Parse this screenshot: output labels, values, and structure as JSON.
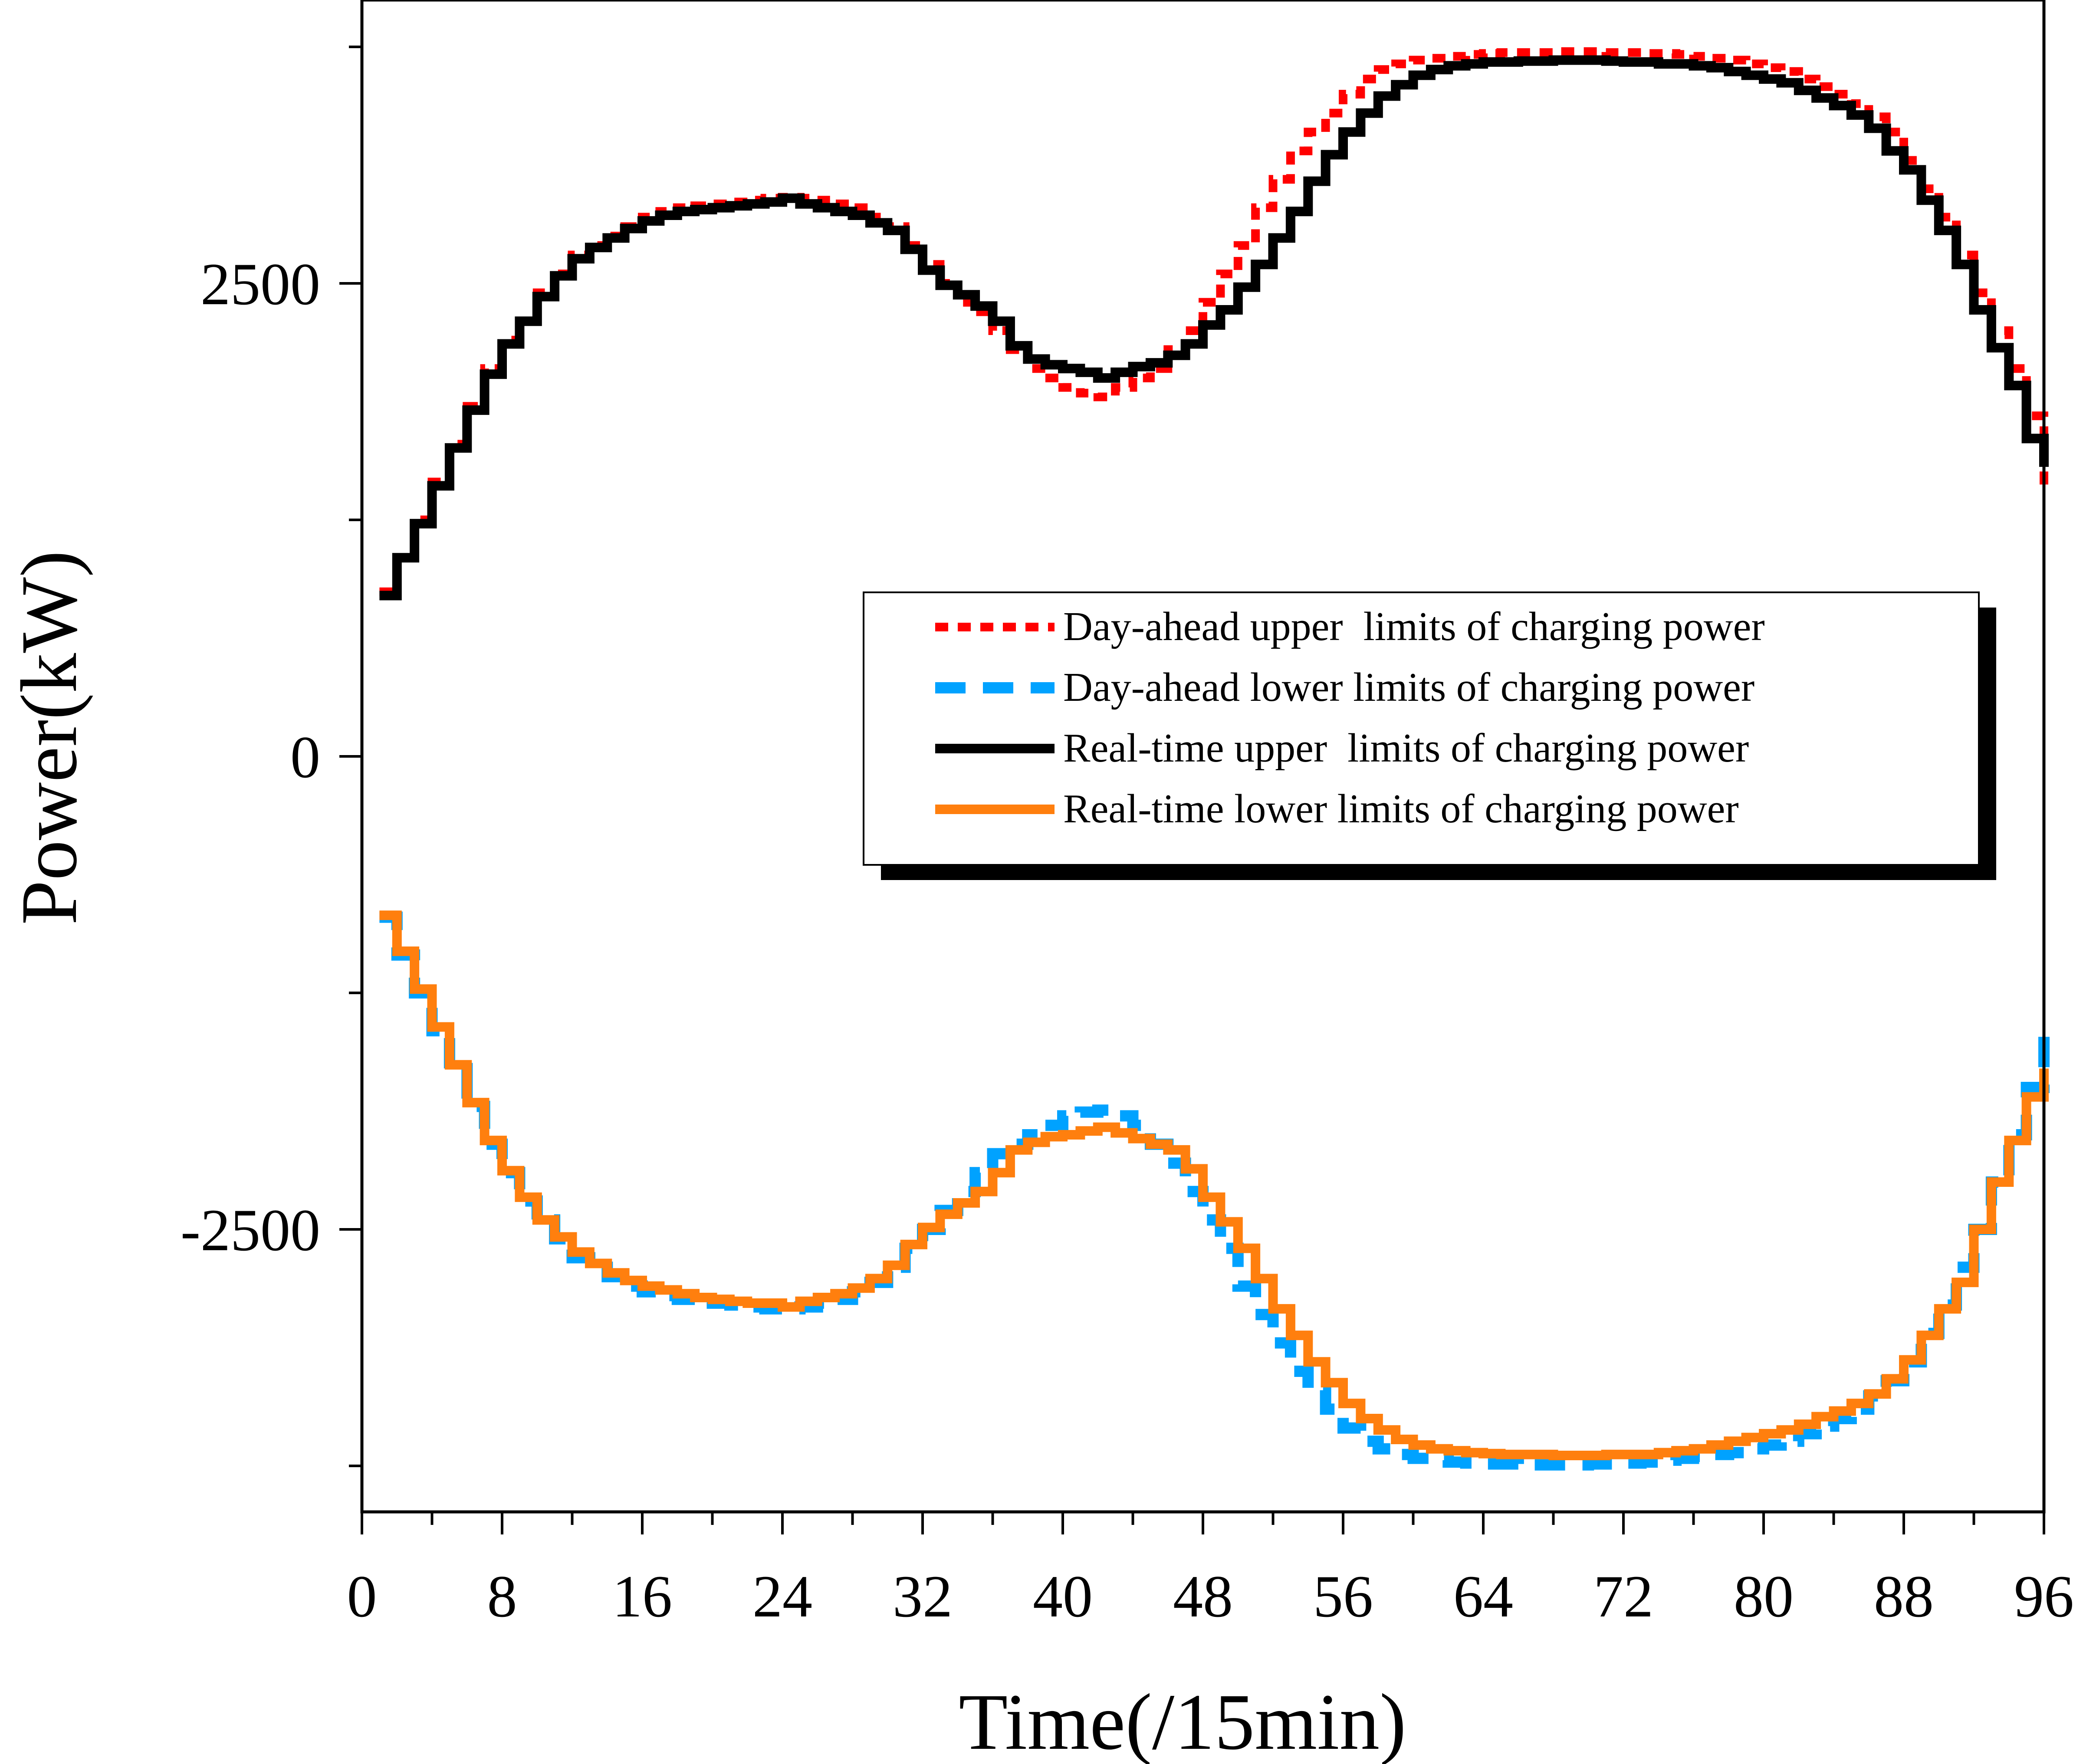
{
  "chart_data": {
    "type": "line",
    "xlabel": "Time(/15min)",
    "ylabel": "Power(kW)",
    "xlim": [
      0,
      96
    ],
    "ylim": [
      -4000,
      4000
    ],
    "xticks": [
      0,
      8,
      16,
      24,
      32,
      40,
      48,
      56,
      64,
      72,
      80,
      88,
      96
    ],
    "yticks": [
      2500,
      0,
      -2500
    ],
    "grid": false,
    "legend_position": "center-right",
    "series": [
      {
        "name": "Day-ahead upper  limits of charging power",
        "color": "#ff0000",
        "style": "dotted",
        "x": [
          1,
          2,
          3,
          4,
          5,
          6,
          7,
          8,
          9,
          10,
          11,
          12,
          13,
          14,
          15,
          16,
          17,
          18,
          19,
          20,
          21,
          22,
          23,
          24,
          25,
          26,
          27,
          28,
          29,
          30,
          31,
          32,
          33,
          34,
          35,
          36,
          37,
          38,
          39,
          40,
          41,
          42,
          43,
          44,
          45,
          46,
          47,
          48,
          49,
          50,
          51,
          52,
          53,
          54,
          55,
          56,
          57,
          58,
          59,
          60,
          61,
          62,
          63,
          64,
          65,
          66,
          67,
          68,
          69,
          70,
          71,
          72,
          73,
          74,
          75,
          76,
          77,
          78,
          79,
          80,
          81,
          82,
          83,
          84,
          85,
          86,
          87,
          88,
          89,
          90,
          91,
          92,
          93,
          94,
          95,
          96
        ],
        "values": [
          870,
          1050,
          1250,
          1450,
          1650,
          1850,
          2050,
          2200,
          2300,
          2450,
          2550,
          2650,
          2700,
          2750,
          2800,
          2850,
          2880,
          2900,
          2910,
          2920,
          2930,
          2940,
          2950,
          2955,
          2950,
          2940,
          2920,
          2900,
          2850,
          2800,
          2700,
          2600,
          2500,
          2400,
          2350,
          2250,
          2150,
          2050,
          2000,
          1950,
          1920,
          1900,
          1950,
          2000,
          2050,
          2150,
          2250,
          2400,
          2550,
          2700,
          2900,
          3050,
          3200,
          3300,
          3400,
          3500,
          3580,
          3630,
          3660,
          3680,
          3690,
          3700,
          3710,
          3715,
          3720,
          3720,
          3720,
          3725,
          3725,
          3725,
          3720,
          3720,
          3715,
          3715,
          3710,
          3700,
          3690,
          3680,
          3660,
          3640,
          3620,
          3580,
          3540,
          3500,
          3450,
          3380,
          3300,
          3150,
          3000,
          2850,
          2650,
          2450,
          2250,
          2050,
          1800,
          1400
        ]
      },
      {
        "name": "Day-ahead lower limits of charging power",
        "color": "#00a2ff",
        "style": "dashed",
        "x": [
          1,
          2,
          3,
          4,
          5,
          6,
          7,
          8,
          9,
          10,
          11,
          12,
          13,
          14,
          15,
          16,
          17,
          18,
          19,
          20,
          21,
          22,
          23,
          24,
          25,
          26,
          27,
          28,
          29,
          30,
          31,
          32,
          33,
          34,
          35,
          36,
          37,
          38,
          39,
          40,
          41,
          42,
          43,
          44,
          45,
          46,
          47,
          48,
          49,
          50,
          51,
          52,
          53,
          54,
          55,
          56,
          57,
          58,
          59,
          60,
          61,
          62,
          63,
          64,
          65,
          66,
          67,
          68,
          69,
          70,
          71,
          72,
          73,
          74,
          75,
          76,
          77,
          78,
          79,
          80,
          81,
          82,
          83,
          84,
          85,
          86,
          87,
          88,
          89,
          90,
          91,
          92,
          93,
          94,
          95,
          96
        ],
        "values": [
          -850,
          -1050,
          -1250,
          -1450,
          -1650,
          -1850,
          -2050,
          -2200,
          -2350,
          -2450,
          -2550,
          -2650,
          -2700,
          -2750,
          -2800,
          -2830,
          -2850,
          -2870,
          -2880,
          -2890,
          -2900,
          -2910,
          -2920,
          -2920,
          -2910,
          -2890,
          -2870,
          -2830,
          -2780,
          -2700,
          -2600,
          -2500,
          -2400,
          -2300,
          -2200,
          -2100,
          -2050,
          -2000,
          -1950,
          -1900,
          -1880,
          -1870,
          -1900,
          -1950,
          -2050,
          -2150,
          -2300,
          -2450,
          -2600,
          -2800,
          -2950,
          -3100,
          -3250,
          -3350,
          -3450,
          -3550,
          -3620,
          -3660,
          -3690,
          -3710,
          -3720,
          -3730,
          -3735,
          -3740,
          -3740,
          -3745,
          -3745,
          -3745,
          -3745,
          -3740,
          -3740,
          -3735,
          -3730,
          -3720,
          -3710,
          -3700,
          -3690,
          -3680,
          -3660,
          -3640,
          -3620,
          -3580,
          -3540,
          -3500,
          -3450,
          -3380,
          -3300,
          -3200,
          -3050,
          -2900,
          -2700,
          -2500,
          -2250,
          -2000,
          -1750,
          -1400
        ]
      },
      {
        "name": "Real-time upper  limits of charging power",
        "color": "#000000",
        "style": "solid",
        "x": [
          1,
          2,
          3,
          4,
          5,
          6,
          7,
          8,
          9,
          10,
          11,
          12,
          13,
          14,
          15,
          16,
          17,
          18,
          19,
          20,
          21,
          22,
          23,
          24,
          25,
          26,
          27,
          28,
          29,
          30,
          31,
          32,
          33,
          34,
          35,
          36,
          37,
          38,
          39,
          40,
          41,
          42,
          43,
          44,
          45,
          46,
          47,
          48,
          49,
          50,
          51,
          52,
          53,
          54,
          55,
          56,
          57,
          58,
          59,
          60,
          61,
          62,
          63,
          64,
          65,
          66,
          67,
          68,
          69,
          70,
          71,
          72,
          73,
          74,
          75,
          76,
          77,
          78,
          79,
          80,
          81,
          82,
          83,
          84,
          85,
          86,
          87,
          88,
          89,
          90,
          91,
          92,
          93,
          94,
          95,
          96
        ],
        "values": [
          850,
          1050,
          1230,
          1430,
          1630,
          1830,
          2020,
          2180,
          2300,
          2430,
          2540,
          2630,
          2690,
          2740,
          2790,
          2830,
          2860,
          2880,
          2890,
          2900,
          2910,
          2920,
          2930,
          2950,
          2920,
          2900,
          2880,
          2860,
          2820,
          2780,
          2680,
          2570,
          2490,
          2440,
          2380,
          2300,
          2170,
          2100,
          2070,
          2050,
          2030,
          2000,
          2030,
          2060,
          2080,
          2120,
          2180,
          2280,
          2360,
          2480,
          2600,
          2740,
          2880,
          3040,
          3180,
          3300,
          3400,
          3490,
          3550,
          3600,
          3630,
          3650,
          3660,
          3670,
          3670,
          3675,
          3675,
          3680,
          3680,
          3680,
          3675,
          3670,
          3670,
          3660,
          3660,
          3650,
          3640,
          3620,
          3600,
          3580,
          3560,
          3520,
          3480,
          3440,
          3390,
          3320,
          3200,
          3100,
          2940,
          2780,
          2600,
          2360,
          2160,
          1960,
          1680,
          1530
        ]
      },
      {
        "name": "Real-time lower limits of charging power",
        "color": "#ff7f0e",
        "style": "solid",
        "x": [
          1,
          2,
          3,
          4,
          5,
          6,
          7,
          8,
          9,
          10,
          11,
          12,
          13,
          14,
          15,
          16,
          17,
          18,
          19,
          20,
          21,
          22,
          23,
          24,
          25,
          26,
          27,
          28,
          29,
          30,
          31,
          32,
          33,
          34,
          35,
          36,
          37,
          38,
          39,
          40,
          41,
          42,
          43,
          44,
          45,
          46,
          47,
          48,
          49,
          50,
          51,
          52,
          53,
          54,
          55,
          56,
          57,
          58,
          59,
          60,
          61,
          62,
          63,
          64,
          65,
          66,
          67,
          68,
          69,
          70,
          71,
          72,
          73,
          74,
          75,
          76,
          77,
          78,
          79,
          80,
          81,
          82,
          83,
          84,
          85,
          86,
          87,
          88,
          89,
          90,
          91,
          92,
          93,
          94,
          95,
          96
        ],
        "values": [
          -840,
          -1030,
          -1230,
          -1430,
          -1630,
          -1830,
          -2030,
          -2190,
          -2330,
          -2450,
          -2540,
          -2620,
          -2680,
          -2730,
          -2770,
          -2800,
          -2820,
          -2840,
          -2860,
          -2870,
          -2880,
          -2890,
          -2890,
          -2910,
          -2880,
          -2860,
          -2840,
          -2810,
          -2760,
          -2690,
          -2580,
          -2490,
          -2420,
          -2360,
          -2300,
          -2200,
          -2080,
          -2040,
          -2010,
          -2000,
          -1980,
          -1960,
          -1990,
          -2020,
          -2050,
          -2080,
          -2180,
          -2330,
          -2460,
          -2600,
          -2760,
          -2920,
          -3060,
          -3200,
          -3310,
          -3420,
          -3500,
          -3560,
          -3610,
          -3640,
          -3660,
          -3670,
          -3680,
          -3685,
          -3690,
          -3690,
          -3690,
          -3695,
          -3695,
          -3695,
          -3690,
          -3690,
          -3690,
          -3680,
          -3670,
          -3660,
          -3640,
          -3620,
          -3600,
          -3580,
          -3560,
          -3530,
          -3490,
          -3460,
          -3420,
          -3370,
          -3290,
          -3190,
          -3060,
          -2920,
          -2780,
          -2500,
          -2250,
          -2030,
          -1800,
          -1650
        ]
      }
    ]
  }
}
